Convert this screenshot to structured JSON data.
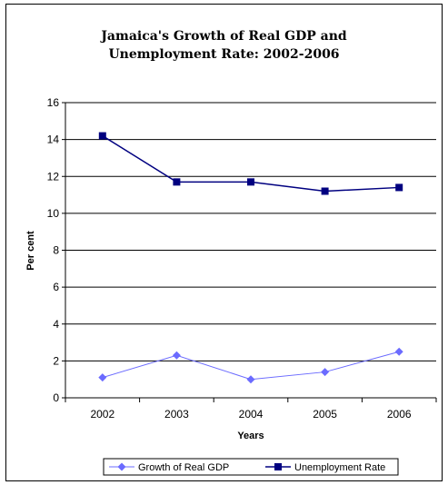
{
  "chart_data": {
    "type": "line",
    "title_lines": [
      "Jamaica's Growth of Real GDP and",
      "Unemployment Rate: 2002-2006"
    ],
    "xlabel": "Years",
    "ylabel": "Per cent",
    "categories": [
      "2002",
      "2003",
      "2004",
      "2005",
      "2006"
    ],
    "ylim": [
      0,
      16
    ],
    "yticks": [
      0,
      2,
      4,
      6,
      8,
      10,
      12,
      14,
      16
    ],
    "grid": "horizontal",
    "legend_position": "bottom",
    "series": [
      {
        "name": "Growth of Real GDP",
        "values": [
          1.1,
          2.3,
          1.0,
          1.4,
          2.5
        ],
        "color": "#6b6bff",
        "marker": "diamond"
      },
      {
        "name": "Unemployment Rate",
        "values": [
          14.2,
          11.7,
          11.7,
          11.2,
          11.4
        ],
        "color": "#000080",
        "marker": "square"
      }
    ]
  }
}
